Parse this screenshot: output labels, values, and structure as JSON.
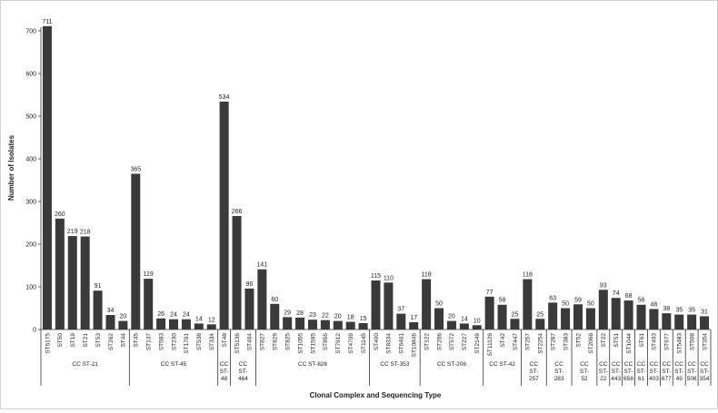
{
  "chart_data": {
    "type": "bar",
    "xlabel": "Clonal Complex and Sequencing Type",
    "ylabel": "Number of Isolates",
    "ylim": [
      0,
      700
    ],
    "yticks": [
      0,
      100,
      200,
      300,
      400,
      500,
      600,
      700
    ],
    "bar_color": "#3a3a3a",
    "grid": false,
    "legend": "none",
    "categories": [
      "ST6175",
      "ST50",
      "ST19",
      "ST21",
      "ST53",
      "ST262",
      "ST44",
      "ST45",
      "ST137",
      "ST583",
      "ST230",
      "ST1701",
      "ST538",
      "ST334",
      "ST48",
      "ST5136",
      "ST464",
      "ST827",
      "ST829",
      "ST825",
      "ST1055",
      "ST1595",
      "ST855",
      "ST7912",
      "ST4709",
      "ST1145",
      "ST400",
      "ST8334",
      "ST6461",
      "ST10846",
      "ST122",
      "ST206",
      "ST572",
      "ST227",
      "ST2149",
      "ST11126",
      "ST42",
      "ST447",
      "ST257",
      "ST2254",
      "ST267",
      "ST383",
      "ST52",
      "ST2066",
      "ST22",
      "ST51",
      "ST1044",
      "ST61",
      "ST403",
      "ST677",
      "ST5483",
      "ST508",
      "ST354"
    ],
    "values": [
      711,
      260,
      219,
      218,
      91,
      34,
      20,
      365,
      119,
      26,
      24,
      24,
      14,
      12,
      534,
      266,
      96,
      141,
      60,
      29,
      28,
      23,
      22,
      20,
      18,
      15,
      115,
      110,
      37,
      17,
      118,
      50,
      20,
      14,
      10,
      77,
      58,
      25,
      118,
      25,
      63,
      50,
      59,
      50,
      93,
      74,
      68,
      58,
      48,
      38,
      35,
      35,
      31
    ],
    "groups": [
      {
        "label": "CC ST-21",
        "count": 7
      },
      {
        "label": "CC ST-45",
        "count": 7
      },
      {
        "label": "CC ST-48",
        "count": 1
      },
      {
        "label": "CC ST-464",
        "count": 2
      },
      {
        "label": "CC ST-828",
        "count": 9
      },
      {
        "label": "CC ST-353",
        "count": 4
      },
      {
        "label": "CC ST-206",
        "count": 5
      },
      {
        "label": "CC ST-42",
        "count": 3
      },
      {
        "label": "CC ST-257",
        "count": 2
      },
      {
        "label": "CC ST-283",
        "count": 2
      },
      {
        "label": "CC ST-52",
        "count": 2
      },
      {
        "label": "CC ST-22",
        "count": 1
      },
      {
        "label": "CC ST-443",
        "count": 1
      },
      {
        "label": "CC ST-658",
        "count": 1
      },
      {
        "label": "CC ST-61",
        "count": 1
      },
      {
        "label": "CC ST-403",
        "count": 1
      },
      {
        "label": "CC ST-677",
        "count": 1
      },
      {
        "label": "CC ST-49",
        "count": 1
      },
      {
        "label": "CC ST-508",
        "count": 1
      },
      {
        "label": "CC ST-354",
        "count": 1
      }
    ]
  }
}
